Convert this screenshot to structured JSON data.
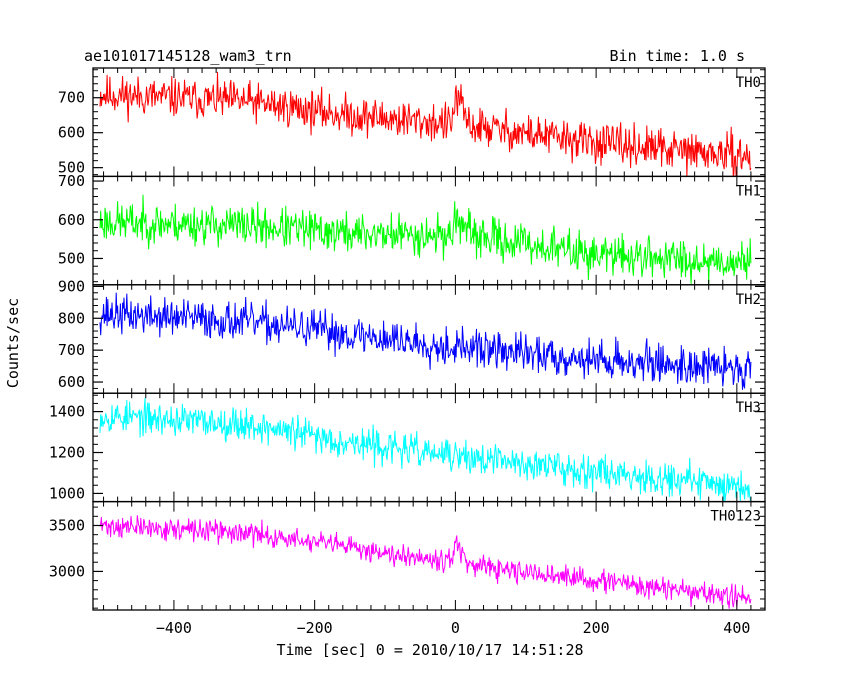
{
  "chart_data": {
    "type": "line",
    "title": "ae101017145128_wam3_trn",
    "subtitle": "Bin time: 1.0 s",
    "xlabel": "Time [sec] 0 = 2010/10/17 14:51:28",
    "ylabel": "Counts/sec",
    "xlim": [
      -515,
      440
    ],
    "x_ticks": [
      -400,
      -200,
      0,
      200,
      400
    ],
    "x_tick_labels": [
      "−400",
      "−200",
      "0",
      "200",
      "400"
    ],
    "x_sample_step": 1,
    "grid": false,
    "panels": [
      {
        "name": "TH0",
        "color": "#ff0000",
        "ylim": [
          475,
          785
        ],
        "y_ticks": [
          500,
          600,
          700
        ],
        "y_tick_labels": [
          "500",
          "600",
          "700"
        ],
        "trend": [
          [
            -505,
            710
          ],
          [
            -300,
            690
          ],
          [
            -150,
            650
          ],
          [
            -5,
            625
          ],
          [
            0,
            700
          ],
          [
            5,
            690
          ],
          [
            20,
            620
          ],
          [
            200,
            570
          ],
          [
            420,
            530
          ]
        ],
        "noise": 28,
        "seed": 11
      },
      {
        "name": "TH1",
        "color": "#00ff00",
        "ylim": [
          432,
          712
        ],
        "y_ticks": [
          500,
          600,
          700
        ],
        "y_tick_labels": [
          "500",
          "600",
          "700"
        ],
        "trend": [
          [
            -505,
            595
          ],
          [
            -300,
            585
          ],
          [
            -150,
            565
          ],
          [
            -5,
            560
          ],
          [
            0,
            610
          ],
          [
            5,
            600
          ],
          [
            20,
            560
          ],
          [
            200,
            510
          ],
          [
            420,
            490
          ]
        ],
        "noise": 26,
        "seed": 23
      },
      {
        "name": "TH2",
        "color": "#0000ff",
        "ylim": [
          565,
          905
        ],
        "y_ticks": [
          600,
          700,
          800,
          900
        ],
        "y_tick_labels": [
          "600",
          "700",
          "800",
          "900"
        ],
        "trend": [
          [
            -505,
            815
          ],
          [
            -300,
            790
          ],
          [
            -150,
            750
          ],
          [
            0,
            710
          ],
          [
            200,
            670
          ],
          [
            420,
            640
          ]
        ],
        "noise": 30,
        "seed": 37
      },
      {
        "name": "TH3",
        "color": "#00ffff",
        "ylim": [
          960,
          1490
        ],
        "y_ticks": [
          1000,
          1200,
          1400
        ],
        "y_tick_labels": [
          "1000",
          "1200",
          "1400"
        ],
        "trend": [
          [
            -505,
            1380
          ],
          [
            -300,
            1340
          ],
          [
            -150,
            1250
          ],
          [
            0,
            1180
          ],
          [
            200,
            1110
          ],
          [
            420,
            1030
          ]
        ],
        "noise": 40,
        "seed": 53
      },
      {
        "name": "TH0123",
        "color": "#ff00ff",
        "ylim": [
          2580,
          3760
        ],
        "y_ticks": [
          3000,
          3500
        ],
        "y_tick_labels": [
          "3000",
          "3500"
        ],
        "trend": [
          [
            -505,
            3500
          ],
          [
            -300,
            3420
          ],
          [
            -150,
            3260
          ],
          [
            -5,
            3120
          ],
          [
            0,
            3330
          ],
          [
            5,
            3260
          ],
          [
            20,
            3050
          ],
          [
            200,
            2900
          ],
          [
            420,
            2700
          ]
        ],
        "noise": 60,
        "seed": 71
      }
    ]
  }
}
